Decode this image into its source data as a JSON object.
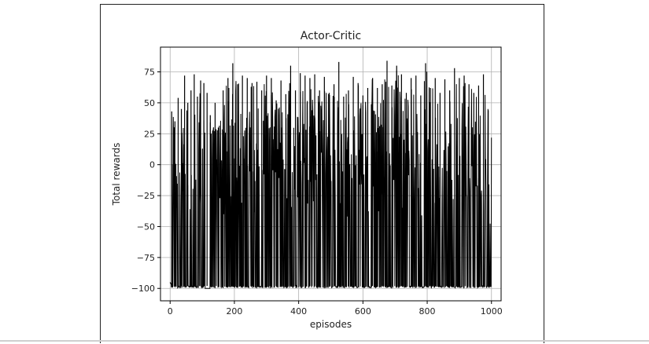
{
  "chart_data": {
    "type": "line",
    "title": "Actor-Critic",
    "xlabel": "episodes",
    "ylabel": "Total rewards",
    "xlim": [
      -30,
      1030
    ],
    "ylim": [
      -110,
      95
    ],
    "x_ticks": [
      0,
      200,
      400,
      600,
      800,
      1000
    ],
    "y_ticks": [
      -100,
      -75,
      -50,
      -25,
      0,
      25,
      50,
      75
    ],
    "x_tick_labels": [
      "0",
      "200",
      "400",
      "600",
      "800",
      "1000"
    ],
    "y_tick_labels": [
      "−100",
      "−75",
      "−50",
      "−25",
      "0",
      "25",
      "50",
      "75"
    ],
    "grid": true,
    "line_color": "#000000",
    "series": [
      {
        "episodes": [
          0,
          1000
        ],
        "baseline": -98,
        "peaks": [
          {
            "x": 5,
            "y": 43
          },
          {
            "x": 15,
            "y": 35
          },
          {
            "x": 25,
            "y": 54
          },
          {
            "x": 35,
            "y": 45
          },
          {
            "x": 45,
            "y": 72
          },
          {
            "x": 55,
            "y": 50
          },
          {
            "x": 65,
            "y": 60
          },
          {
            "x": 75,
            "y": 73
          },
          {
            "x": 85,
            "y": 55
          },
          {
            "x": 95,
            "y": 68
          },
          {
            "x": 105,
            "y": 66
          },
          {
            "x": 115,
            "y": 58
          },
          {
            "x": 125,
            "y": 40
          },
          {
            "x": 140,
            "y": 50
          },
          {
            "x": 150,
            "y": 30
          },
          {
            "x": 165,
            "y": 60
          },
          {
            "x": 180,
            "y": 70
          },
          {
            "x": 195,
            "y": 82
          },
          {
            "x": 210,
            "y": 65
          },
          {
            "x": 225,
            "y": 72
          },
          {
            "x": 240,
            "y": 70
          },
          {
            "x": 255,
            "y": 66
          },
          {
            "x": 270,
            "y": 67
          },
          {
            "x": 285,
            "y": 60
          },
          {
            "x": 300,
            "y": 72
          },
          {
            "x": 315,
            "y": 70
          },
          {
            "x": 330,
            "y": 52
          },
          {
            "x": 345,
            "y": 68
          },
          {
            "x": 360,
            "y": 57
          },
          {
            "x": 375,
            "y": 80
          },
          {
            "x": 390,
            "y": 60
          },
          {
            "x": 405,
            "y": 74
          },
          {
            "x": 420,
            "y": 72
          },
          {
            "x": 435,
            "y": 70
          },
          {
            "x": 450,
            "y": 73
          },
          {
            "x": 465,
            "y": 60
          },
          {
            "x": 480,
            "y": 71
          },
          {
            "x": 495,
            "y": 58
          },
          {
            "x": 510,
            "y": 65
          },
          {
            "x": 525,
            "y": 83
          },
          {
            "x": 540,
            "y": 55
          },
          {
            "x": 555,
            "y": 60
          },
          {
            "x": 570,
            "y": 71
          },
          {
            "x": 585,
            "y": 66
          },
          {
            "x": 600,
            "y": 56
          },
          {
            "x": 615,
            "y": 62
          },
          {
            "x": 630,
            "y": 70
          },
          {
            "x": 645,
            "y": 62
          },
          {
            "x": 660,
            "y": 65
          },
          {
            "x": 675,
            "y": 84
          },
          {
            "x": 690,
            "y": 64
          },
          {
            "x": 705,
            "y": 80
          },
          {
            "x": 720,
            "y": 73
          },
          {
            "x": 735,
            "y": 58
          },
          {
            "x": 750,
            "y": 70
          },
          {
            "x": 765,
            "y": 72
          },
          {
            "x": 780,
            "y": 56
          },
          {
            "x": 795,
            "y": 82
          },
          {
            "x": 810,
            "y": 62
          },
          {
            "x": 825,
            "y": 70
          },
          {
            "x": 840,
            "y": 58
          },
          {
            "x": 855,
            "y": 69
          },
          {
            "x": 870,
            "y": 60
          },
          {
            "x": 885,
            "y": 78
          },
          {
            "x": 900,
            "y": 70
          },
          {
            "x": 915,
            "y": 72
          },
          {
            "x": 930,
            "y": 65
          },
          {
            "x": 945,
            "y": 58
          },
          {
            "x": 960,
            "y": 64
          },
          {
            "x": 975,
            "y": 73
          },
          {
            "x": 990,
            "y": 44
          }
        ]
      }
    ]
  }
}
